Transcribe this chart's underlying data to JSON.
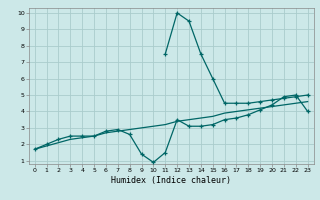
{
  "xlabel": "Humidex (Indice chaleur)",
  "bg_color": "#cce8e8",
  "grid_color": "#aacccc",
  "line_color": "#006666",
  "xlim": [
    -0.5,
    23.5
  ],
  "ylim": [
    0.8,
    10.3
  ],
  "xticks": [
    0,
    1,
    2,
    3,
    4,
    5,
    6,
    7,
    8,
    9,
    10,
    11,
    12,
    13,
    14,
    15,
    16,
    17,
    18,
    19,
    20,
    21,
    22,
    23
  ],
  "yticks": [
    1,
    2,
    3,
    4,
    5,
    6,
    7,
    8,
    9,
    10
  ],
  "line1_x": [
    0,
    1,
    2,
    3,
    4,
    5,
    6,
    7,
    8,
    9,
    10,
    11,
    12,
    13,
    14,
    15,
    16,
    17,
    18,
    19,
    20,
    21,
    22,
    23
  ],
  "line1_y": [
    1.7,
    2.0,
    2.3,
    2.5,
    2.5,
    2.5,
    2.8,
    2.9,
    2.6,
    1.4,
    0.9,
    1.5,
    3.5,
    3.1,
    3.1,
    3.2,
    3.5,
    3.6,
    3.8,
    4.1,
    4.4,
    4.9,
    5.0,
    4.0
  ],
  "line2_x": [
    0,
    1,
    2,
    3,
    4,
    5,
    6,
    7,
    8,
    9,
    10,
    11,
    12,
    13,
    14,
    15,
    16,
    17,
    18,
    19,
    20,
    21,
    22,
    23
  ],
  "line2_y": [
    1.7,
    1.9,
    2.1,
    2.3,
    2.4,
    2.5,
    2.7,
    2.8,
    2.9,
    3.0,
    3.1,
    3.2,
    3.4,
    3.5,
    3.6,
    3.7,
    3.9,
    4.0,
    4.1,
    4.2,
    4.3,
    4.4,
    4.5,
    4.6
  ],
  "line3_x": [
    11,
    12,
    13,
    14,
    15,
    16,
    17,
    18,
    19,
    20,
    21,
    22,
    23
  ],
  "line3_y": [
    7.5,
    10.0,
    9.5,
    7.5,
    6.0,
    4.5,
    4.5,
    4.5,
    4.6,
    4.7,
    4.8,
    4.9,
    5.0
  ],
  "xlabel_fontsize": 6,
  "tick_fontsize": 4.5
}
